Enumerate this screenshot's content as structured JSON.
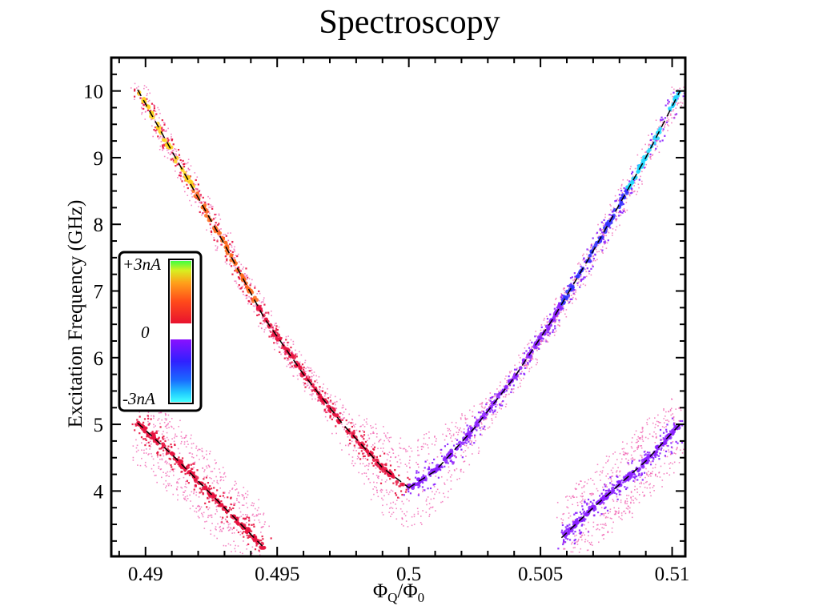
{
  "title": "Spectroscopy",
  "chart_data": {
    "type": "scatter",
    "title": "Spectroscopy",
    "xlabel": "ΦQ/Φ0",
    "xlabel_parts": {
      "phi1": "Φ",
      "sub1": "Q",
      "slash": "/",
      "phi2": "Φ",
      "sub2": "0"
    },
    "ylabel": "Excitation Frequency (GHz)",
    "xlim": [
      0.4887,
      0.5105
    ],
    "ylim": [
      3.02,
      10.5
    ],
    "x_ticks": [
      0.49,
      0.495,
      0.5,
      0.505,
      0.51
    ],
    "x_tick_labels": [
      "0.49",
      "0.495",
      "0.5",
      "0.505",
      "0.51"
    ],
    "y_ticks": [
      4,
      5,
      6,
      7,
      8,
      9,
      10
    ],
    "y_tick_labels": [
      "4",
      "5",
      "6",
      "7",
      "8",
      "9",
      "10"
    ],
    "grid": false,
    "colorbar": {
      "labels": [
        "+3nA",
        "0",
        "-3nA"
      ],
      "range_nA": [
        -3,
        3
      ],
      "positive_colors": [
        "#e8122e",
        "#ff5a1a",
        "#ffb21a",
        "#d8f020",
        "#40ff40"
      ],
      "negative_colors": [
        "#8a10ff",
        "#3020ff",
        "#1a6aff",
        "#20d8ff",
        "#40ffff"
      ],
      "placement": "left-middle"
    },
    "series": [
      {
        "description_key": "upper_branch_left",
        "dashed_fit": [
          [
            0.4897,
            10.02
          ],
          [
            0.491,
            9.1
          ],
          [
            0.493,
            7.7
          ],
          [
            0.4945,
            6.6
          ],
          [
            0.496,
            5.75
          ],
          [
            0.4975,
            5.0
          ],
          [
            0.499,
            4.35
          ],
          [
            0.5,
            4.05
          ]
        ],
        "signal_sign": "positive"
      },
      {
        "description_key": "upper_branch_right",
        "dashed_fit": [
          [
            0.5,
            4.05
          ],
          [
            0.501,
            4.3
          ],
          [
            0.5025,
            4.95
          ],
          [
            0.504,
            5.7
          ],
          [
            0.5055,
            6.6
          ],
          [
            0.507,
            7.6
          ],
          [
            0.509,
            9.0
          ],
          [
            0.5103,
            10.0
          ]
        ],
        "signal_sign": "negative"
      },
      {
        "description_key": "lower_branch_left",
        "dashed_fit": [
          [
            0.4897,
            5.02
          ],
          [
            0.491,
            4.55
          ],
          [
            0.493,
            3.75
          ],
          [
            0.4945,
            3.15
          ]
        ],
        "signal_sign": "positive"
      },
      {
        "description_key": "lower_branch_right",
        "dashed_fit": [
          [
            0.5058,
            3.3
          ],
          [
            0.507,
            3.75
          ],
          [
            0.509,
            4.45
          ],
          [
            0.5103,
            5.0
          ]
        ],
        "signal_sign": "negative"
      }
    ]
  },
  "colors": {
    "fit_line": "#000000",
    "axis": "#000000",
    "scatter_pos": "#e8123e",
    "scatter_neg": "#8a20ff",
    "scatter_halo": "#f060b0"
  }
}
